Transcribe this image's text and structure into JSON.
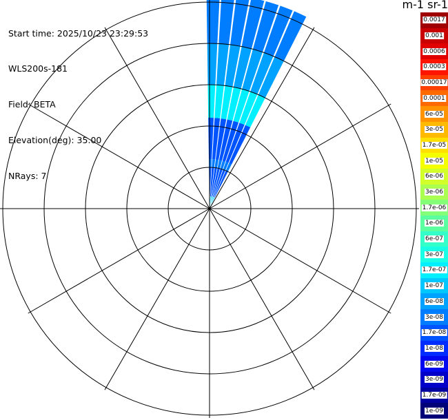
{
  "info": {
    "start_time": "Start time: 2025/10/23 23:29:53",
    "instrument": "WLS200s-181",
    "field": "Field: BETA",
    "elevation": "Elevation(deg): 35.00",
    "nrays": "NRays: 7"
  },
  "colorbar": {
    "units_label": "m-1 sr-1",
    "levels": [
      {
        "label": "0.0017",
        "color": "#a00000"
      },
      {
        "label": "0.001",
        "color": "#c80000"
      },
      {
        "label": "0.0006",
        "color": "#e00000"
      },
      {
        "label": "0.0003",
        "color": "#ff1400"
      },
      {
        "label": "0.00017",
        "color": "#ff4000"
      },
      {
        "label": "0.0001",
        "color": "#ff6a00"
      },
      {
        "label": "6e-05",
        "color": "#ff9400"
      },
      {
        "label": "3e-05",
        "color": "#ffba00"
      },
      {
        "label": "1.7e-05",
        "color": "#ffe000"
      },
      {
        "label": "1e-05",
        "color": "#f4ff00"
      },
      {
        "label": "6e-06",
        "color": "#d2ff2a"
      },
      {
        "label": "3e-06",
        "color": "#aaff50"
      },
      {
        "label": "1.7e-06",
        "color": "#84ff78"
      },
      {
        "label": "1e-06",
        "color": "#5cffa0"
      },
      {
        "label": "6e-07",
        "color": "#34ffc8"
      },
      {
        "label": "3e-07",
        "color": "#18ffe6"
      },
      {
        "label": "1.7e-07",
        "color": "#00f0ff"
      },
      {
        "label": "1e-07",
        "color": "#00c8ff"
      },
      {
        "label": "6e-08",
        "color": "#00a2ff"
      },
      {
        "label": "3e-08",
        "color": "#007cff"
      },
      {
        "label": "1.7e-08",
        "color": "#0054ff"
      },
      {
        "label": "1e-08",
        "color": "#002cff"
      },
      {
        "label": "6e-09",
        "color": "#0008f0"
      },
      {
        "label": "3e-09",
        "color": "#0000c8"
      },
      {
        "label": "1.7e-09",
        "color": "#0000a0"
      },
      {
        "label": "1e-09",
        "color": "#000078"
      }
    ]
  },
  "chart_data": {
    "type": "polar-ppi",
    "field": "BETA",
    "azimuths_deg": [
      1,
      5,
      9,
      13,
      17,
      21,
      25
    ],
    "beam_width_deg": 3.6,
    "rings": 5,
    "spokes_deg": [
      0,
      30,
      60,
      90,
      120,
      150,
      180,
      210,
      240,
      270,
      300,
      330
    ],
    "range_segments": [
      {
        "from_ring": 0.0,
        "to_ring": 0.3,
        "level": "1e-07"
      },
      {
        "from_ring": 0.3,
        "to_ring": 1.0,
        "level": "1.7e-08"
      },
      {
        "from_ring": 1.0,
        "to_ring": 1.2,
        "level": "3e-08"
      },
      {
        "from_ring": 1.2,
        "to_ring": 2.2,
        "level": "1.7e-08"
      },
      {
        "from_ring": 2.2,
        "to_ring": 3.0,
        "level": "1.7e-07"
      },
      {
        "from_ring": 3.0,
        "to_ring": 4.0,
        "level": "6e-08"
      },
      {
        "from_ring": 4.0,
        "to_ring": 5.2,
        "level": "3e-08"
      }
    ]
  }
}
